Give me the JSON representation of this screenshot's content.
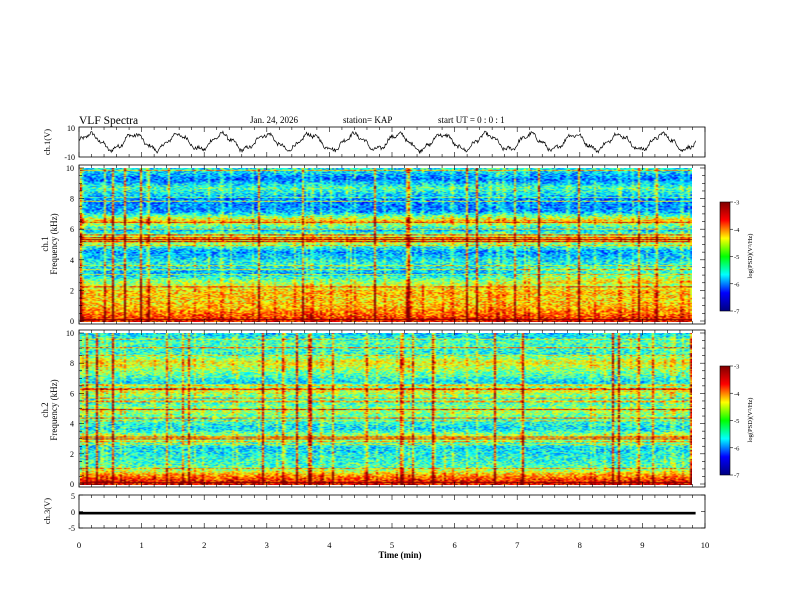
{
  "header": {
    "title": "VLF Spectra",
    "date": "Jan. 24, 2026",
    "station": "station= KAP",
    "start": "start  UT =   0 : 0  : 1"
  },
  "colors": {
    "spectrogram_scale": [
      "#00007f",
      "#0000ff",
      "#00ffff",
      "#00ff00",
      "#ffff00",
      "#ff0000",
      "#7f0000"
    ],
    "trace": "#000000"
  },
  "chart_data": [
    {
      "type": "line",
      "name": "ch1-waveform",
      "ylabel": "ch.1(V)",
      "ylim": [
        -10,
        10
      ],
      "ytick_labels": [
        "10",
        "-10"
      ],
      "x_range_min": [
        0,
        9.85
      ],
      "description_of_values": "oscillating voltage trace, roughly between -6 and 6 V, ~14 cycles over the record",
      "cycles": 14,
      "amplitude": 5
    },
    {
      "type": "heatmap",
      "name": "ch1-spectrogram",
      "ylabel_top": "ch.1",
      "ylabel": "Frequency  (kHz)",
      "ylim": [
        0,
        10
      ],
      "ytick_labels": [
        "0",
        "2",
        "4",
        "6",
        "8",
        "10"
      ],
      "colorbar": {
        "label": "log(PSD)(V²/Hz)",
        "range": [
          -7,
          -3
        ],
        "tick_labels": [
          "-3",
          "-4",
          "-5",
          "-6",
          "-7"
        ]
      },
      "band_levels_kHz_logPSD": [
        [
          0.2,
          -3.6
        ],
        [
          0.5,
          -3.9
        ],
        [
          0.9,
          -4.2
        ],
        [
          1.4,
          -4.4
        ],
        [
          2.0,
          -4.3
        ],
        [
          2.7,
          -5.0
        ],
        [
          3.2,
          -5.8
        ],
        [
          3.8,
          -5.4
        ],
        [
          4.6,
          -5.9
        ],
        [
          5.1,
          -5.0
        ],
        [
          5.4,
          -4.2
        ],
        [
          6.0,
          -5.8
        ],
        [
          6.6,
          -4.3
        ],
        [
          7.2,
          -5.9
        ],
        [
          8.0,
          -6.0
        ],
        [
          8.7,
          -5.2
        ],
        [
          9.3,
          -6.1
        ],
        [
          9.9,
          -5.5
        ]
      ]
    },
    {
      "type": "heatmap",
      "name": "ch2-spectrogram",
      "ylabel_top": "ch.2",
      "ylabel": "Frequency  (kHz)",
      "ylim": [
        0,
        10
      ],
      "ytick_labels": [
        "0",
        "2",
        "4",
        "6",
        "8",
        "10"
      ],
      "colorbar": {
        "label": "log(PSD)(V²/Hz)",
        "range": [
          -7,
          -3
        ],
        "tick_labels": [
          "-3",
          "-4",
          "-5",
          "-6",
          "-7"
        ]
      },
      "band_levels_kHz_logPSD": [
        [
          0.2,
          -3.5
        ],
        [
          0.6,
          -4.0
        ],
        [
          1.2,
          -5.2
        ],
        [
          1.8,
          -5.4
        ],
        [
          2.5,
          -5.6
        ],
        [
          3.2,
          -4.6
        ],
        [
          3.7,
          -5.6
        ],
        [
          4.3,
          -5.3
        ],
        [
          4.9,
          -4.8
        ],
        [
          5.6,
          -5.4
        ],
        [
          6.2,
          -4.6
        ],
        [
          6.8,
          -5.6
        ],
        [
          7.5,
          -5.0
        ],
        [
          8.1,
          -4.5
        ],
        [
          8.7,
          -5.4
        ],
        [
          9.4,
          -5.2
        ],
        [
          9.9,
          -5.6
        ]
      ]
    },
    {
      "type": "line",
      "name": "ch3-waveform",
      "ylabel": "ch.3(V)",
      "ylim": [
        -5,
        5
      ],
      "ytick_labels": [
        "5",
        "0",
        "-5"
      ],
      "constant_value": -0.5,
      "band_thickness_V": 0.8
    }
  ],
  "xaxis": {
    "label": "Time  (min)",
    "xlim": [
      0,
      10
    ],
    "tick_labels": [
      "0",
      "1",
      "2",
      "3",
      "4",
      "5",
      "6",
      "7",
      "8",
      "9",
      "10"
    ]
  }
}
